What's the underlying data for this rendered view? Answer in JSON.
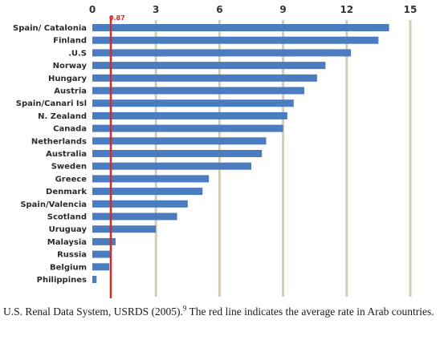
{
  "chart_data": {
    "type": "bar",
    "orientation": "horizontal",
    "categories": [
      "Spain/ Catalonia",
      "Finland",
      ".U.S",
      "Norway",
      "Hungary",
      "Austria",
      "Spain/Canari Isl",
      "N. Zealand",
      "Canada",
      "Netherlands",
      "Australia",
      "Sweden",
      "Greece",
      "Denmark",
      "Spain/Valencia",
      "Scotland",
      "Uruguay",
      "Malaysia",
      "Russia",
      "Belgium",
      "Philippines"
    ],
    "values": [
      14.0,
      13.5,
      12.2,
      11.0,
      10.6,
      10.0,
      9.5,
      9.2,
      9.0,
      8.2,
      8.0,
      7.5,
      5.5,
      5.2,
      4.5,
      4.0,
      3.0,
      1.1,
      0.9,
      0.8,
      0.2
    ],
    "xlim": [
      0,
      15
    ],
    "x_ticks": [
      "0",
      "3",
      "6",
      "9",
      "12",
      "15"
    ],
    "x_tick_values": [
      0,
      3,
      6,
      9,
      12,
      15
    ],
    "axis_position": "top",
    "grid": "vertical",
    "reference_line": {
      "value": 0.87,
      "label": "0.87",
      "color": "#d42b2b"
    },
    "bar_color": "#4a7cbf",
    "grid_color": "#d6ccb4"
  },
  "caption": {
    "text_before": "U.S. Renal Data System, USRDS (2005).",
    "superscript": "9",
    "text_after": " The red line indicates the average rate in Arab countries."
  }
}
